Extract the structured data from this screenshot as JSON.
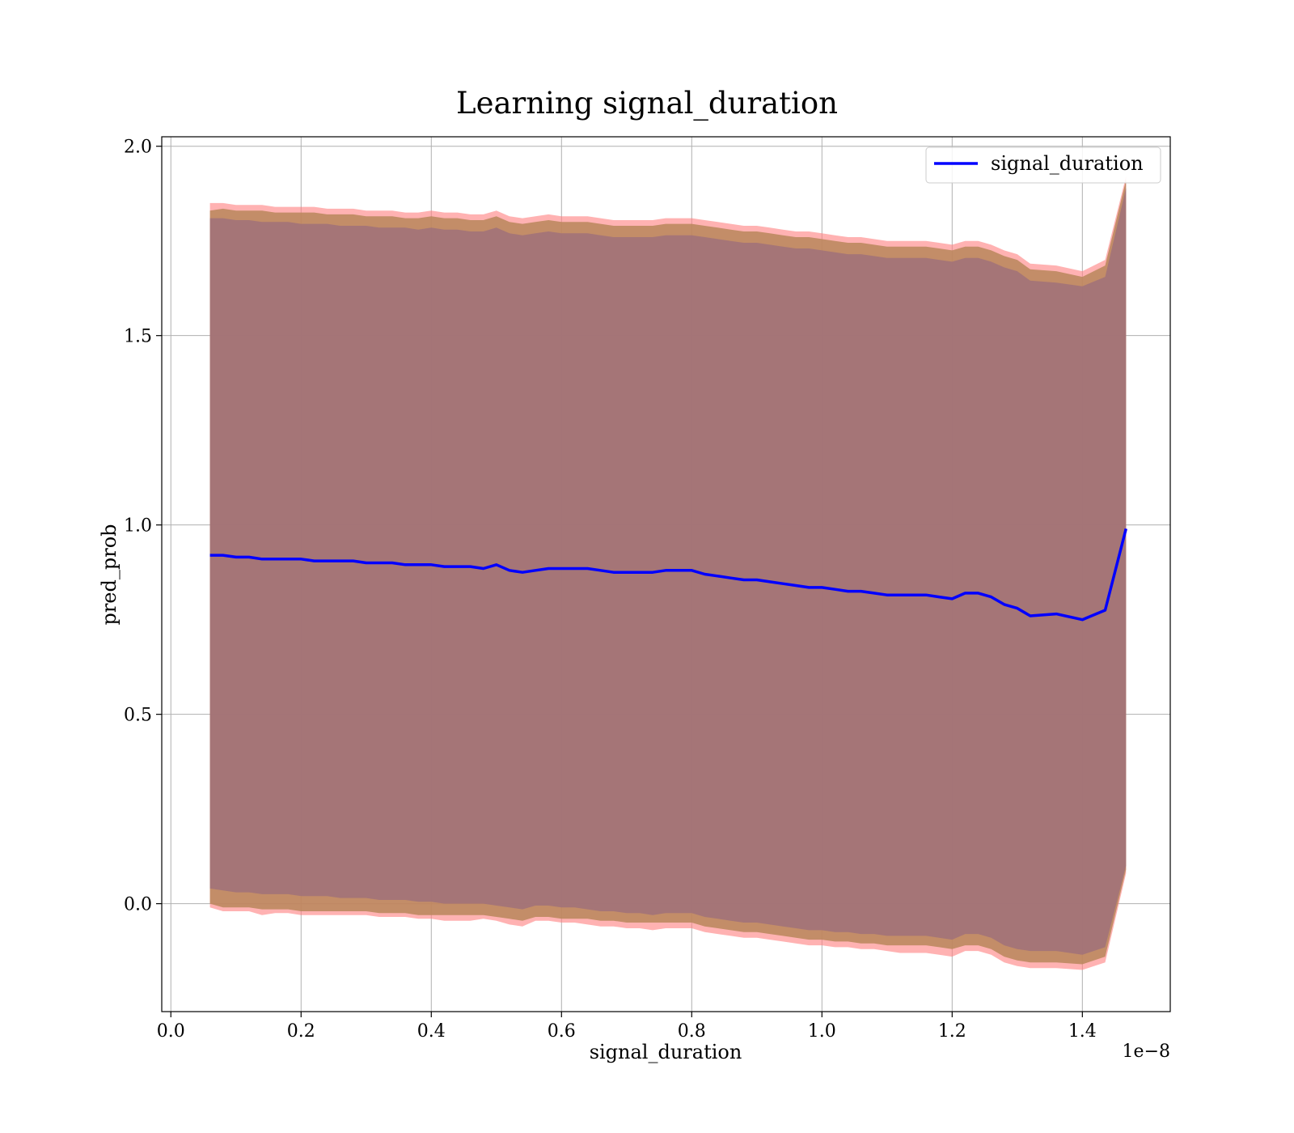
{
  "chart_data": {
    "type": "line",
    "title": "Learning signal_duration",
    "xlabel": "signal_duration",
    "ylabel": "pred_prob",
    "x_offset_label": "1e−8",
    "xlim": [
      -0.014,
      1.535
    ],
    "ylim": [
      -0.285,
      2.025
    ],
    "xticks": [
      0.0,
      0.2,
      0.4,
      0.6,
      0.8,
      1.0,
      1.2,
      1.4
    ],
    "xtick_labels": [
      "0.0",
      "0.2",
      "0.4",
      "0.6",
      "0.8",
      "1.0",
      "1.2",
      "1.4"
    ],
    "yticks": [
      0.0,
      0.5,
      1.0,
      1.5,
      2.0
    ],
    "ytick_labels": [
      "0.0",
      "0.5",
      "1.0",
      "1.5",
      "2.0"
    ],
    "grid": true,
    "legend": {
      "location": "upper right",
      "entries": [
        "signal_duration"
      ]
    },
    "series": [
      {
        "name": "signal_duration",
        "color": "#0000ff",
        "x": [
          0.06,
          0.08,
          0.1,
          0.12,
          0.14,
          0.16,
          0.18,
          0.2,
          0.22,
          0.24,
          0.26,
          0.28,
          0.3,
          0.32,
          0.34,
          0.36,
          0.38,
          0.4,
          0.42,
          0.44,
          0.46,
          0.48,
          0.5,
          0.52,
          0.54,
          0.56,
          0.58,
          0.6,
          0.62,
          0.64,
          0.66,
          0.68,
          0.7,
          0.72,
          0.74,
          0.76,
          0.78,
          0.8,
          0.82,
          0.84,
          0.86,
          0.88,
          0.9,
          0.92,
          0.94,
          0.96,
          0.98,
          1.0,
          1.02,
          1.04,
          1.06,
          1.08,
          1.1,
          1.12,
          1.14,
          1.16,
          1.18,
          1.2,
          1.22,
          1.24,
          1.26,
          1.28,
          1.3,
          1.32,
          1.36,
          1.4,
          1.435,
          1.467
        ],
        "y": [
          0.92,
          0.92,
          0.915,
          0.915,
          0.91,
          0.91,
          0.91,
          0.91,
          0.905,
          0.905,
          0.905,
          0.905,
          0.9,
          0.9,
          0.9,
          0.895,
          0.895,
          0.895,
          0.89,
          0.89,
          0.89,
          0.885,
          0.895,
          0.88,
          0.875,
          0.88,
          0.885,
          0.885,
          0.885,
          0.885,
          0.88,
          0.875,
          0.875,
          0.875,
          0.875,
          0.88,
          0.88,
          0.88,
          0.87,
          0.865,
          0.86,
          0.855,
          0.855,
          0.85,
          0.845,
          0.84,
          0.835,
          0.835,
          0.83,
          0.825,
          0.825,
          0.82,
          0.815,
          0.815,
          0.815,
          0.815,
          0.81,
          0.805,
          0.82,
          0.82,
          0.81,
          0.79,
          0.78,
          0.76,
          0.765,
          0.75,
          0.775,
          0.99
        ]
      }
    ],
    "bands": [
      {
        "color": "#ff7f7f",
        "lower": [
          -0.01,
          -0.02,
          -0.02,
          -0.02,
          -0.03,
          -0.025,
          -0.025,
          -0.03,
          -0.03,
          -0.03,
          -0.03,
          -0.03,
          -0.03,
          -0.035,
          -0.035,
          -0.035,
          -0.04,
          -0.04,
          -0.045,
          -0.045,
          -0.045,
          -0.04,
          -0.045,
          -0.055,
          -0.06,
          -0.045,
          -0.045,
          -0.05,
          -0.05,
          -0.055,
          -0.06,
          -0.06,
          -0.065,
          -0.065,
          -0.07,
          -0.065,
          -0.065,
          -0.065,
          -0.075,
          -0.08,
          -0.085,
          -0.09,
          -0.09,
          -0.095,
          -0.1,
          -0.105,
          -0.11,
          -0.11,
          -0.115,
          -0.115,
          -0.12,
          -0.12,
          -0.125,
          -0.13,
          -0.13,
          -0.13,
          -0.135,
          -0.14,
          -0.125,
          -0.125,
          -0.135,
          -0.155,
          -0.165,
          -0.17,
          -0.17,
          -0.175,
          -0.155,
          0.08
        ],
        "upper": [
          1.85,
          1.85,
          1.845,
          1.845,
          1.845,
          1.84,
          1.84,
          1.84,
          1.84,
          1.835,
          1.835,
          1.835,
          1.83,
          1.83,
          1.83,
          1.825,
          1.825,
          1.83,
          1.825,
          1.825,
          1.82,
          1.82,
          1.83,
          1.815,
          1.81,
          1.815,
          1.82,
          1.815,
          1.815,
          1.815,
          1.81,
          1.805,
          1.805,
          1.805,
          1.805,
          1.81,
          1.81,
          1.81,
          1.805,
          1.8,
          1.795,
          1.79,
          1.79,
          1.785,
          1.78,
          1.775,
          1.775,
          1.77,
          1.765,
          1.76,
          1.76,
          1.755,
          1.75,
          1.75,
          1.75,
          1.75,
          1.745,
          1.74,
          1.75,
          1.75,
          1.74,
          1.725,
          1.715,
          1.69,
          1.685,
          1.67,
          1.7,
          1.92
        ]
      },
      {
        "color": "#b8865b",
        "lower": [
          0.0,
          -0.01,
          -0.01,
          -0.01,
          -0.015,
          -0.015,
          -0.015,
          -0.02,
          -0.02,
          -0.02,
          -0.02,
          -0.02,
          -0.02,
          -0.025,
          -0.025,
          -0.025,
          -0.03,
          -0.03,
          -0.03,
          -0.03,
          -0.03,
          -0.03,
          -0.035,
          -0.04,
          -0.045,
          -0.035,
          -0.035,
          -0.04,
          -0.04,
          -0.04,
          -0.045,
          -0.045,
          -0.05,
          -0.05,
          -0.05,
          -0.05,
          -0.05,
          -0.05,
          -0.06,
          -0.065,
          -0.07,
          -0.075,
          -0.075,
          -0.08,
          -0.085,
          -0.09,
          -0.095,
          -0.095,
          -0.1,
          -0.1,
          -0.105,
          -0.105,
          -0.11,
          -0.11,
          -0.11,
          -0.11,
          -0.115,
          -0.12,
          -0.11,
          -0.11,
          -0.12,
          -0.14,
          -0.15,
          -0.155,
          -0.155,
          -0.16,
          -0.14,
          0.09
        ],
        "upper": [
          1.83,
          1.835,
          1.83,
          1.83,
          1.83,
          1.825,
          1.825,
          1.825,
          1.825,
          1.82,
          1.82,
          1.82,
          1.815,
          1.815,
          1.815,
          1.81,
          1.81,
          1.815,
          1.81,
          1.81,
          1.805,
          1.805,
          1.815,
          1.8,
          1.795,
          1.8,
          1.805,
          1.8,
          1.8,
          1.8,
          1.795,
          1.79,
          1.79,
          1.79,
          1.79,
          1.795,
          1.795,
          1.795,
          1.79,
          1.785,
          1.78,
          1.775,
          1.775,
          1.77,
          1.765,
          1.76,
          1.76,
          1.755,
          1.75,
          1.745,
          1.745,
          1.74,
          1.735,
          1.735,
          1.735,
          1.735,
          1.73,
          1.725,
          1.735,
          1.735,
          1.725,
          1.71,
          1.7,
          1.675,
          1.67,
          1.655,
          1.685,
          1.91
        ]
      },
      {
        "color": "#a0717a",
        "lower": [
          0.04,
          0.035,
          0.03,
          0.03,
          0.025,
          0.025,
          0.025,
          0.02,
          0.02,
          0.02,
          0.015,
          0.015,
          0.015,
          0.01,
          0.01,
          0.01,
          0.005,
          0.005,
          0.0,
          0.0,
          0.0,
          0.0,
          -0.005,
          -0.01,
          -0.015,
          -0.005,
          -0.005,
          -0.01,
          -0.01,
          -0.015,
          -0.02,
          -0.02,
          -0.025,
          -0.025,
          -0.03,
          -0.025,
          -0.025,
          -0.025,
          -0.035,
          -0.04,
          -0.045,
          -0.05,
          -0.05,
          -0.055,
          -0.06,
          -0.065,
          -0.07,
          -0.07,
          -0.075,
          -0.075,
          -0.08,
          -0.08,
          -0.085,
          -0.085,
          -0.085,
          -0.085,
          -0.09,
          -0.095,
          -0.08,
          -0.08,
          -0.09,
          -0.11,
          -0.12,
          -0.125,
          -0.125,
          -0.135,
          -0.115,
          0.1
        ],
        "upper": [
          1.81,
          1.81,
          1.805,
          1.805,
          1.8,
          1.8,
          1.8,
          1.795,
          1.795,
          1.795,
          1.79,
          1.79,
          1.79,
          1.785,
          1.785,
          1.785,
          1.78,
          1.785,
          1.78,
          1.78,
          1.775,
          1.775,
          1.785,
          1.77,
          1.765,
          1.77,
          1.775,
          1.77,
          1.77,
          1.77,
          1.765,
          1.76,
          1.76,
          1.76,
          1.76,
          1.765,
          1.765,
          1.765,
          1.76,
          1.755,
          1.75,
          1.745,
          1.745,
          1.74,
          1.735,
          1.73,
          1.73,
          1.725,
          1.72,
          1.715,
          1.715,
          1.71,
          1.705,
          1.705,
          1.705,
          1.705,
          1.7,
          1.695,
          1.705,
          1.705,
          1.695,
          1.68,
          1.67,
          1.645,
          1.64,
          1.63,
          1.655,
          1.89
        ]
      }
    ]
  }
}
